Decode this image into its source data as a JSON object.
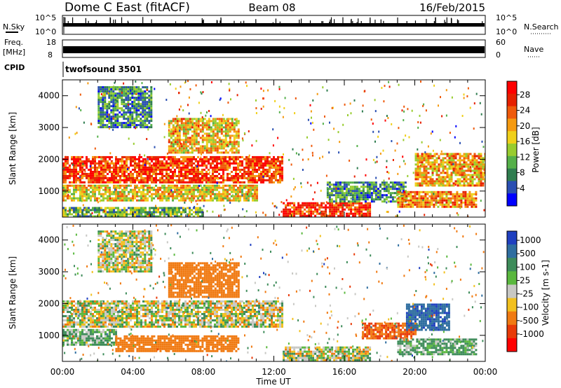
{
  "header": {
    "station": "Dome C East (fitACF)",
    "beam": "Beam 08",
    "date": "16/Feb/2015"
  },
  "status_panels": {
    "nsky_label": "N.Sky",
    "nsearch_label": "N.Search",
    "noise_ticks_left": [
      "10^5",
      "10^0"
    ],
    "noise_ticks_right": [
      "10^5",
      "10^0"
    ],
    "freq_label_line1": "Freq.",
    "freq_label_line2": "[MHz]",
    "freq_ticks": [
      "18",
      "8"
    ],
    "nave_label": "Nave",
    "nave_ticks": [
      "60",
      "0"
    ],
    "cpid_label": "CPID",
    "cpid_value": "twofsound 3501"
  },
  "chart_data": [
    {
      "type": "heatmap",
      "panel": "power",
      "xlabel": "",
      "ylabel": "Slant Range [km]",
      "xlim": [
        "00:00",
        "24:00"
      ],
      "ylim": [
        180,
        4500
      ],
      "yticks": [
        "1000",
        "2000",
        "3000",
        "4000"
      ],
      "colorbar": {
        "label": "Power [dB]",
        "ticks": [
          "4",
          "8",
          "12",
          "16",
          "20",
          "24",
          "28"
        ],
        "colors": [
          "#0000ff",
          "#2a4fb2",
          "#2f7d4f",
          "#55b049",
          "#98cc2f",
          "#f0d01a",
          "#f59a10",
          "#ef5a0b",
          "#e62000",
          "#ff0000"
        ]
      },
      "bands": [
        {
          "t": [
            0,
            12.5
          ],
          "r": [
            1300,
            2100
          ],
          "level": 26
        },
        {
          "t": [
            0,
            11
          ],
          "r": [
            700,
            1200
          ],
          "level": 18
        },
        {
          "t": [
            0,
            8
          ],
          "r": [
            200,
            500
          ],
          "level": 12
        },
        {
          "t": [
            12.5,
            17.5
          ],
          "r": [
            250,
            650
          ],
          "level": 27
        },
        {
          "t": [
            15,
            19.5
          ],
          "r": [
            700,
            1300
          ],
          "level": 9
        },
        {
          "t": [
            19,
            23.5
          ],
          "r": [
            500,
            1000
          ],
          "level": 22
        },
        {
          "t": [
            20,
            24
          ],
          "r": [
            1200,
            2200
          ],
          "level": 20
        },
        {
          "t": [
            6,
            10
          ],
          "r": [
            2200,
            3300
          ],
          "level": 19
        },
        {
          "t": [
            2,
            5
          ],
          "r": [
            3000,
            4300
          ],
          "level": 9
        }
      ]
    },
    {
      "type": "heatmap",
      "panel": "velocity",
      "xlabel": "Time UT",
      "ylabel": "Slant Range [km]",
      "xlim": [
        "00:00",
        "24:00"
      ],
      "ylim": [
        180,
        4500
      ],
      "xticks": [
        "00:00",
        "04:00",
        "08:00",
        "12:00",
        "16:00",
        "20:00",
        "00:00"
      ],
      "yticks": [
        "1000",
        "2000",
        "3000",
        "4000"
      ],
      "colorbar": {
        "label": "Velocity [m s-1]",
        "ticks": [
          "1000",
          "500",
          "100",
          "25",
          "-25",
          "-100",
          "-500",
          "-1000"
        ],
        "colors": [
          "#2040c0",
          "#2f6ea0",
          "#3e8c5a",
          "#5ab83e",
          "#c8c8c4",
          "#f2c01e",
          "#f07a12",
          "#e83a08",
          "#ff0000"
        ]
      },
      "bands": [
        {
          "t": [
            0,
            12.5
          ],
          "r": [
            1300,
            2100
          ],
          "level": 0
        },
        {
          "t": [
            0,
            3
          ],
          "r": [
            700,
            1200
          ],
          "level": 60
        },
        {
          "t": [
            3,
            10
          ],
          "r": [
            500,
            1000
          ],
          "level": -150
        },
        {
          "t": [
            12.5,
            17.5
          ],
          "r": [
            250,
            650
          ],
          "level": 10
        },
        {
          "t": [
            17,
            20
          ],
          "r": [
            900,
            1400
          ],
          "level": -300
        },
        {
          "t": [
            19.5,
            22
          ],
          "r": [
            1200,
            2000
          ],
          "level": 700
        },
        {
          "t": [
            19,
            23.5
          ],
          "r": [
            400,
            900
          ],
          "level": 80
        },
        {
          "t": [
            6,
            10
          ],
          "r": [
            2200,
            3300
          ],
          "level": -180
        },
        {
          "t": [
            2,
            5
          ],
          "r": [
            3000,
            4300
          ],
          "level": 0
        }
      ]
    }
  ]
}
